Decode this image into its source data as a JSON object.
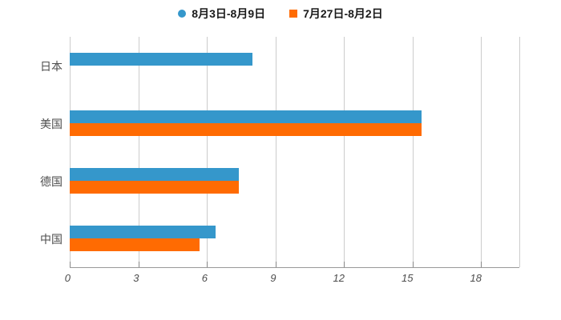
{
  "legend": {
    "items": [
      {
        "label": "8月3日-8月9日",
        "marker": "circle",
        "color": "#3597cb"
      },
      {
        "label": "7月27日-8月2日",
        "marker": "square",
        "color": "#ff6b02"
      }
    ]
  },
  "chart_data": {
    "type": "bar",
    "orientation": "horizontal",
    "title": "",
    "categories": [
      "日本",
      "美国",
      "德国",
      "中国"
    ],
    "series": [
      {
        "name": "8月3日-8月9日",
        "color": "#3597cb",
        "values": [
          8.0,
          15.4,
          7.4,
          6.4
        ]
      },
      {
        "name": "7月27日-8月2日",
        "color": "#ff6b02",
        "values": [
          null,
          15.4,
          7.4,
          5.7
        ]
      }
    ],
    "x_ticks": [
      0,
      3,
      6,
      9,
      12,
      15,
      18
    ],
    "xlim": [
      0,
      19.7
    ],
    "grid": true,
    "legend_position": "top"
  },
  "style": {
    "background": "#ffffff",
    "grid_color": "#cccccc",
    "axis_line_color": "#999999",
    "tick_color": "#888888",
    "tick_label_color": "#4d4d4d",
    "category_label_color": "#4d4d4d",
    "legend_text_color": "#1a1a1a"
  }
}
